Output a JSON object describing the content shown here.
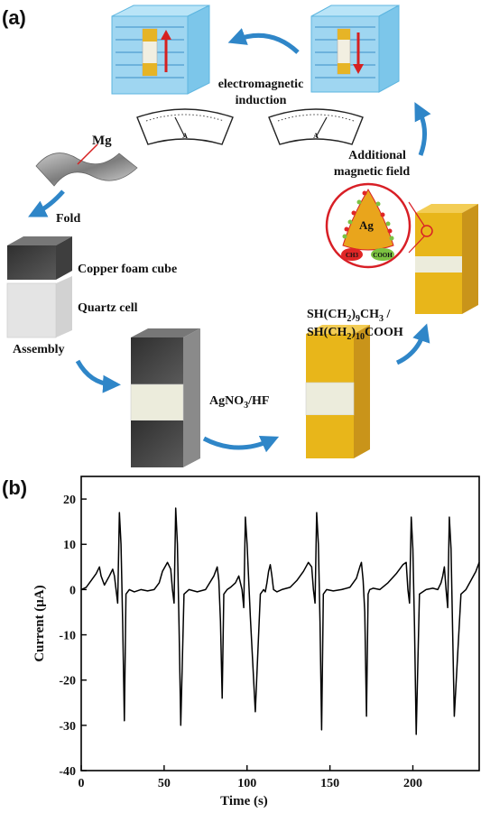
{
  "panel_a": {
    "panel_label": "(a)",
    "labels": {
      "mg": "Mg",
      "fold": "Fold",
      "copper_foam_cube": "Copper foam cube",
      "quartz_cell": "Quartz cell",
      "assembly": "Assembly",
      "agno3_hf": "AgNO3/HF",
      "electromagnetic": "electromagnetic",
      "induction": "induction",
      "additional": "Additional",
      "magnetic_field": "magnetic field",
      "thiol_1": "SH(CH2)9CH3 /",
      "thiol_2": "SH(CH2)10COOH",
      "ag": "Ag",
      "ch3": "CH3",
      "cooh": "COOH",
      "meter_unit": "A"
    },
    "colors": {
      "copper_foam": "#5c5c5c",
      "silver_coated": "#e8b61a",
      "quartz": "#e9eadf",
      "field_box": "#8fd0ef",
      "arrow": "#2f86c8",
      "current_arrow": "#d62020",
      "zoom_circle": "#d81f26"
    }
  },
  "panel_b": {
    "panel_label": "(b)",
    "chart_data": {
      "type": "line",
      "xlabel": "Time (s)",
      "ylabel": "Current (μA)",
      "xlim": [
        0,
        240
      ],
      "ylim": [
        -40,
        25
      ],
      "xticks": [
        0,
        50,
        100,
        150,
        200
      ],
      "yticks": [
        20,
        10,
        0,
        -10,
        -20,
        -30,
        -40
      ],
      "grid": false,
      "legend": "none",
      "series": [
        {
          "color": "#000000",
          "x": [
            0,
            3,
            6,
            9,
            11,
            12,
            14,
            17,
            19,
            20,
            21,
            22,
            23,
            24,
            25,
            26,
            27,
            29,
            32,
            36,
            40,
            44,
            47,
            49,
            52,
            54,
            55,
            56,
            57,
            58,
            59,
            60,
            62,
            65,
            70,
            75,
            80,
            82,
            83,
            84,
            85,
            86,
            88,
            90,
            93,
            95,
            97,
            98,
            99,
            100,
            102,
            105,
            108,
            110,
            111,
            112,
            113,
            114,
            115,
            116,
            118,
            121,
            126,
            130,
            134,
            137,
            139,
            140,
            141,
            142,
            143,
            144,
            145,
            146,
            148,
            152,
            157,
            162,
            166,
            168,
            169,
            170,
            171,
            172,
            173,
            174,
            176,
            180,
            185,
            190,
            194,
            196,
            197,
            198,
            199,
            200,
            201,
            202,
            204,
            208,
            212,
            215,
            217,
            218,
            219,
            220,
            221,
            222,
            223,
            225,
            229,
            232,
            235,
            238,
            240
          ],
          "y": [
            0,
            0.5,
            2,
            3.5,
            5,
            3,
            1,
            3,
            4.5,
            3,
            0,
            -3,
            17,
            10,
            -7,
            -29,
            -1,
            0,
            -0.5,
            0,
            -0.3,
            0,
            1.5,
            4,
            6,
            4.5,
            0,
            -3,
            18,
            10,
            -8,
            -30,
            -1,
            0,
            -0.5,
            0,
            3,
            5,
            2,
            -7,
            -24,
            -1,
            0,
            0.5,
            1.5,
            3,
            0,
            -4,
            16,
            10,
            -6,
            -27,
            -1,
            0,
            -0.5,
            1.5,
            4,
            5.5,
            3,
            0,
            -0.5,
            0,
            0.5,
            2,
            4,
            6,
            5,
            0,
            -3,
            17,
            10,
            -7,
            -31,
            -1,
            0,
            -0.3,
            0,
            0.5,
            2.5,
            5,
            6,
            2,
            -5,
            -28,
            -1,
            0,
            0.3,
            0,
            1.5,
            3.5,
            5.5,
            6,
            0,
            -3,
            16,
            9,
            -8,
            -32,
            -1,
            0,
            0.3,
            0,
            1.5,
            3,
            5,
            0,
            -4,
            16,
            9,
            -28,
            -1,
            0,
            2,
            4,
            6
          ]
        }
      ]
    }
  }
}
